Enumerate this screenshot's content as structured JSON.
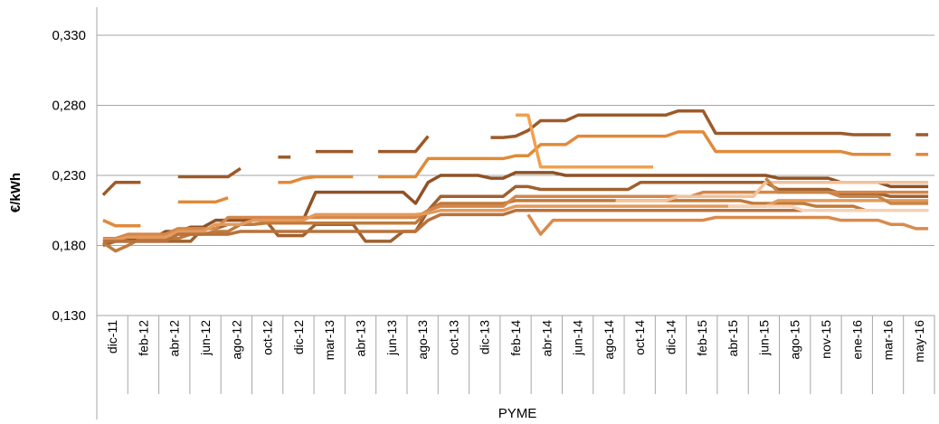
{
  "chart_data": {
    "type": "line",
    "xlabel": "PYME",
    "ylabel": "€/kWh",
    "ylim": [
      0.13,
      0.35
    ],
    "y_ticks": [
      "0,130",
      "0,180",
      "0,230",
      "0,280",
      "0,330"
    ],
    "y_tick_values": [
      0.13,
      0.18,
      0.23,
      0.28,
      0.33
    ],
    "grid": "horizontal",
    "legend": "none",
    "x_start_month": "dic-11",
    "x_tick_labels": [
      "dic-11",
      "feb-12",
      "abr-12",
      "jun-12",
      "ago-12",
      "oct-12",
      "dic-12",
      "mar-13",
      "abr-13",
      "jun-13",
      "ago-13",
      "oct-13",
      "dic-13",
      "feb-14",
      "abr-14",
      "jun-14",
      "ago-14",
      "oct-14",
      "dic-14",
      "feb-15",
      "abr-15",
      "jun-15",
      "ago-15",
      "nov-15",
      "ene-16",
      "mar-16",
      "may-16"
    ],
    "series": [
      {
        "color": "#9c5a2a",
        "values": [
          0.216,
          0.225,
          0.225,
          0.225,
          null,
          null,
          0.229,
          0.229,
          0.229,
          0.229,
          0.229,
          0.235,
          null,
          null,
          0.243,
          0.243,
          null,
          0.247,
          0.247,
          0.247,
          0.247,
          null,
          0.247,
          0.247,
          0.247,
          0.247,
          0.258,
          null,
          null,
          null,
          null,
          0.257,
          0.257,
          0.258,
          0.262,
          0.269,
          0.269,
          0.269,
          0.273,
          0.273,
          0.273,
          0.273,
          0.273,
          0.273,
          0.273,
          0.273,
          0.276,
          0.276,
          0.276,
          0.26,
          0.26,
          0.26,
          0.26,
          0.26,
          0.26,
          0.26,
          0.26,
          0.26,
          0.26,
          0.26,
          0.259,
          0.259,
          0.259,
          0.259,
          null,
          0.259,
          0.259
        ]
      },
      {
        "color": "#e08a3a",
        "values": [
          0.198,
          0.194,
          0.194,
          0.194,
          null,
          null,
          0.211,
          0.211,
          0.211,
          0.211,
          0.214,
          null,
          null,
          null,
          0.225,
          0.225,
          0.228,
          0.229,
          0.229,
          0.229,
          0.229,
          null,
          0.229,
          0.229,
          0.229,
          0.229,
          0.242,
          0.242,
          0.242,
          0.242,
          0.242,
          0.242,
          0.242,
          0.244,
          0.244,
          0.252,
          0.252,
          0.252,
          0.258,
          0.258,
          0.258,
          0.258,
          0.258,
          0.258,
          0.258,
          0.258,
          0.261,
          0.261,
          0.261,
          0.247,
          0.247,
          0.247,
          0.247,
          0.247,
          0.247,
          0.247,
          0.247,
          0.247,
          0.247,
          0.247,
          0.245,
          0.245,
          0.245,
          0.245,
          null,
          0.245,
          0.245
        ]
      },
      {
        "color": "#f0a050",
        "values": [
          null,
          null,
          null,
          null,
          null,
          null,
          null,
          null,
          null,
          null,
          null,
          null,
          null,
          null,
          null,
          null,
          null,
          null,
          null,
          null,
          null,
          null,
          null,
          null,
          null,
          null,
          null,
          null,
          null,
          null,
          null,
          null,
          null,
          0.273,
          0.273,
          0.236,
          0.236,
          0.236,
          0.236,
          0.236,
          0.236,
          0.236,
          0.236,
          0.236,
          0.236,
          null,
          null,
          null,
          null,
          null,
          null,
          null,
          null,
          null,
          null,
          null,
          null,
          null,
          null,
          null,
          null,
          null,
          null,
          null,
          null,
          null,
          null
        ]
      },
      {
        "color": "#a0602e",
        "values": [
          0.18,
          0.183,
          0.183,
          0.183,
          0.183,
          0.183,
          0.183,
          0.183,
          0.192,
          0.192,
          0.195,
          0.195,
          0.198,
          0.198,
          0.187,
          0.187,
          0.187,
          0.195,
          0.195,
          0.195,
          0.195,
          0.183,
          0.183,
          0.183,
          0.19,
          0.19,
          0.205,
          0.215,
          0.215,
          0.215,
          0.215,
          0.215,
          0.215,
          0.222,
          0.222,
          0.22,
          0.22,
          0.22,
          0.22,
          0.22,
          0.22,
          0.22,
          0.22,
          0.225,
          0.225,
          0.225,
          0.225,
          0.225,
          0.225,
          0.225,
          0.225,
          0.225,
          0.225,
          0.225,
          0.22,
          0.22,
          0.22,
          0.22,
          0.22,
          0.217,
          0.217,
          0.217,
          0.217,
          0.215,
          0.215,
          0.215,
          0.215
        ]
      },
      {
        "color": "#8f5226",
        "values": [
          0.183,
          0.183,
          0.185,
          0.185,
          0.185,
          0.19,
          0.19,
          0.193,
          0.193,
          0.198,
          0.198,
          0.198,
          0.198,
          0.198,
          0.198,
          0.198,
          0.198,
          0.218,
          0.218,
          0.218,
          0.218,
          0.218,
          0.218,
          0.218,
          0.218,
          0.21,
          0.225,
          0.23,
          0.23,
          0.23,
          0.23,
          0.228,
          0.228,
          0.232,
          0.232,
          0.232,
          0.232,
          0.23,
          0.23,
          0.23,
          0.23,
          0.23,
          0.23,
          0.23,
          0.23,
          0.23,
          0.23,
          0.23,
          0.23,
          0.23,
          0.23,
          0.23,
          0.23,
          0.23,
          0.228,
          0.228,
          0.228,
          0.228,
          0.228,
          0.225,
          0.225,
          0.225,
          0.225,
          0.222,
          0.222,
          0.222,
          0.222
        ]
      },
      {
        "color": "#c07a3a",
        "values": [
          0.182,
          0.176,
          0.18,
          0.185,
          0.185,
          0.185,
          0.185,
          0.188,
          0.188,
          0.19,
          0.19,
          0.195,
          0.195,
          0.196,
          0.196,
          0.196,
          0.196,
          0.196,
          0.196,
          0.196,
          0.196,
          0.196,
          0.196,
          0.196,
          0.196,
          0.196,
          0.205,
          0.21,
          0.21,
          0.21,
          0.21,
          0.21,
          0.21,
          0.212,
          0.212,
          0.212,
          0.212,
          0.212,
          0.212,
          0.212,
          0.212,
          0.212,
          0.212,
          0.212,
          0.212,
          0.212,
          0.212,
          0.212,
          0.212,
          0.212,
          0.212,
          0.212,
          0.21,
          0.21,
          0.21,
          0.21,
          0.21,
          0.208,
          0.208,
          0.208,
          0.208,
          0.205,
          0.205,
          0.205,
          0.205,
          0.205,
          0.205
        ]
      },
      {
        "color": "#d4874a",
        "values": [
          0.185,
          0.185,
          0.188,
          0.188,
          0.188,
          0.188,
          0.192,
          0.192,
          0.192,
          0.192,
          0.2,
          0.2,
          0.2,
          0.2,
          0.2,
          0.2,
          0.2,
          0.2,
          0.2,
          0.2,
          0.2,
          0.2,
          0.2,
          0.2,
          0.2,
          0.2,
          0.205,
          0.208,
          0.208,
          0.208,
          0.208,
          0.208,
          0.208,
          0.215,
          0.215,
          0.215,
          0.215,
          0.215,
          0.215,
          0.215,
          0.215,
          0.215,
          0.215,
          0.215,
          0.215,
          0.215,
          0.215,
          0.215,
          0.218,
          0.218,
          0.218,
          0.218,
          0.218,
          0.218,
          0.218,
          0.218,
          0.218,
          0.218,
          0.218,
          0.218,
          0.218,
          0.218,
          0.218,
          0.218,
          0.218,
          0.218,
          0.218
        ]
      },
      {
        "color": "#e39a5c",
        "values": [
          0.184,
          0.184,
          0.186,
          0.186,
          0.186,
          0.186,
          0.19,
          0.19,
          0.19,
          0.195,
          0.195,
          0.195,
          0.198,
          0.198,
          0.198,
          0.198,
          0.198,
          0.202,
          0.202,
          0.202,
          0.202,
          0.202,
          0.202,
          0.202,
          0.202,
          0.202,
          0.203,
          0.205,
          0.205,
          0.205,
          0.205,
          0.205,
          0.205,
          0.208,
          0.208,
          0.208,
          0.208,
          0.208,
          0.208,
          0.208,
          0.208,
          0.208,
          0.208,
          0.208,
          0.208,
          0.208,
          0.208,
          0.208,
          0.208,
          0.208,
          0.208,
          0.208,
          0.208,
          0.208,
          0.212,
          0.212,
          0.212,
          0.212,
          0.212,
          0.212,
          0.212,
          0.212,
          0.212,
          0.212,
          0.212,
          0.212,
          0.212
        ]
      },
      {
        "color": "#b8723c",
        "values": [
          0.183,
          0.183,
          0.183,
          0.183,
          0.183,
          0.183,
          0.188,
          0.188,
          0.188,
          0.188,
          0.188,
          0.19,
          0.19,
          0.19,
          0.19,
          0.19,
          0.19,
          0.19,
          0.19,
          0.19,
          0.19,
          0.19,
          0.19,
          0.19,
          0.19,
          0.19,
          0.198,
          0.202,
          0.202,
          0.202,
          0.202,
          0.202,
          0.202,
          0.205,
          0.205,
          0.205,
          0.205,
          0.205,
          0.205,
          0.205,
          0.205,
          0.205,
          0.205,
          0.205,
          0.205,
          0.205,
          0.205,
          0.205,
          0.205,
          0.205,
          0.205,
          0.205,
          0.205,
          0.205,
          0.205,
          0.205,
          0.205,
          0.205,
          0.205,
          0.205,
          0.205,
          0.205,
          0.205,
          0.205,
          0.205,
          0.205,
          0.205
        ]
      },
      {
        "color": "#f2c29a",
        "values": [
          null,
          null,
          null,
          null,
          null,
          null,
          null,
          null,
          null,
          null,
          null,
          null,
          null,
          null,
          null,
          null,
          null,
          null,
          null,
          null,
          null,
          null,
          null,
          null,
          null,
          null,
          null,
          null,
          null,
          null,
          null,
          null,
          null,
          null,
          null,
          null,
          null,
          null,
          null,
          null,
          null,
          0.212,
          0.212,
          0.212,
          0.212,
          0.212,
          0.215,
          0.215,
          0.215,
          0.215,
          0.215,
          0.215,
          0.215,
          0.225,
          0.225,
          0.225,
          0.225,
          0.225,
          0.225,
          0.225,
          0.225,
          0.225,
          0.225,
          0.225,
          0.225,
          0.225,
          0.225
        ]
      },
      {
        "color": "#f4d2b5",
        "values": [
          null,
          null,
          null,
          null,
          null,
          null,
          null,
          null,
          null,
          null,
          null,
          null,
          null,
          null,
          null,
          null,
          null,
          null,
          null,
          null,
          null,
          null,
          null,
          null,
          null,
          null,
          null,
          null,
          null,
          null,
          null,
          null,
          null,
          null,
          null,
          null,
          null,
          null,
          null,
          null,
          null,
          null,
          null,
          null,
          null,
          null,
          null,
          null,
          null,
          null,
          0.208,
          0.208,
          0.208,
          0.208,
          0.208,
          0.208,
          0.205,
          0.205,
          0.205,
          0.205,
          0.205,
          0.205,
          0.205,
          0.205,
          0.205,
          0.205,
          0.205
        ]
      },
      {
        "color": "#d98a4c",
        "values": [
          null,
          null,
          null,
          null,
          null,
          null,
          null,
          null,
          null,
          null,
          null,
          null,
          null,
          null,
          null,
          null,
          null,
          null,
          null,
          null,
          null,
          null,
          null,
          null,
          null,
          null,
          null,
          null,
          null,
          null,
          null,
          null,
          null,
          null,
          0.202,
          0.188,
          0.198,
          0.198,
          0.198,
          0.198,
          0.198,
          0.198,
          0.198,
          0.198,
          0.198,
          0.198,
          0.198,
          0.198,
          0.198,
          0.2,
          0.2,
          0.2,
          0.2,
          0.2,
          0.2,
          0.2,
          0.2,
          0.2,
          0.2,
          0.198,
          0.198,
          0.198,
          0.198,
          0.195,
          0.195,
          0.192,
          0.192
        ]
      },
      {
        "color": "#c98548",
        "values": [
          null,
          null,
          null,
          null,
          null,
          null,
          null,
          null,
          null,
          null,
          null,
          null,
          null,
          null,
          null,
          null,
          null,
          null,
          null,
          null,
          null,
          null,
          null,
          null,
          null,
          null,
          null,
          null,
          null,
          null,
          null,
          null,
          null,
          null,
          null,
          null,
          null,
          null,
          null,
          null,
          null,
          null,
          null,
          null,
          null,
          null,
          null,
          null,
          null,
          null,
          null,
          null,
          null,
          0.228,
          0.218,
          0.218,
          0.218,
          0.218,
          0.218,
          0.215,
          0.215,
          0.215,
          0.215,
          0.21,
          0.21,
          0.21,
          0.21
        ]
      }
    ]
  }
}
